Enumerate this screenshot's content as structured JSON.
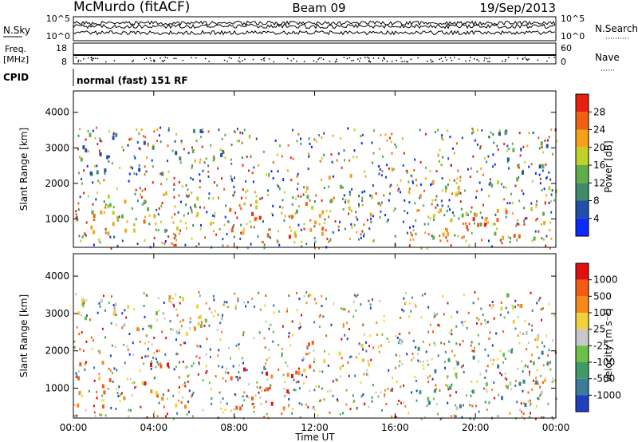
{
  "header": {
    "station": "McMurdo (fitACF)",
    "beam": "Beam 09",
    "date": "19/Sep/2013"
  },
  "noise_panel": {
    "left_label": "N.Sky",
    "right_label": "N.Search",
    "ticks_left": [
      "10^5",
      "10^0"
    ],
    "ticks_right": [
      "10^5",
      "10^0"
    ]
  },
  "freq_panel": {
    "left_label_1": "Freq.",
    "left_label_2": "[MHz]",
    "ticks_left": [
      "18",
      "8"
    ],
    "ticks_right": [
      "60",
      "0"
    ],
    "right_label": "Nave"
  },
  "cpid": {
    "label": "CPID",
    "value": "normal (fast) 151 RF"
  },
  "chart_data": [
    {
      "type": "heatmap",
      "title": "",
      "xlabel": "Time UT",
      "ylabel": "Slant Range [km]",
      "xlim": [
        0,
        24
      ],
      "ylim": [
        200,
        4600
      ],
      "yticks": [
        "1000",
        "2000",
        "3000",
        "4000"
      ],
      "colorbar_label": "Power [dB]",
      "colorbar_ticks": [
        "28",
        "24",
        "20",
        "16",
        "12",
        "8",
        "4"
      ],
      "colors": [
        "#0a2aff",
        "#1f4fa8",
        "#3f8a6a",
        "#5fae4a",
        "#bfd12a",
        "#f5a21a",
        "#f06012",
        "#e82010"
      ],
      "regions": [
        {
          "t0": 0.1,
          "t1": 6.8,
          "r0": 500,
          "r1": 1800,
          "level": 0.55
        },
        {
          "t0": 0.6,
          "t1": 3.5,
          "r0": 600,
          "r1": 1300,
          "level": 0.75
        },
        {
          "t0": 7.6,
          "t1": 13.8,
          "r0": 600,
          "r1": 1600,
          "level": 0.7
        },
        {
          "t0": 8.0,
          "t1": 11.2,
          "r0": 500,
          "r1": 1200,
          "level": 0.85
        },
        {
          "t0": 11.0,
          "t1": 14.8,
          "r0": 1100,
          "r1": 2300,
          "level": 0.5
        },
        {
          "t0": 17.0,
          "t1": 24.0,
          "r0": 500,
          "r1": 2200,
          "level": 0.6
        },
        {
          "t0": 17.5,
          "t1": 21.8,
          "r0": 600,
          "r1": 1300,
          "level": 0.8
        },
        {
          "t0": 0.0,
          "t1": 7.5,
          "r0": 2300,
          "r1": 3600,
          "level": 0.3
        },
        {
          "t0": 21.0,
          "t1": 24.0,
          "r0": 2300,
          "r1": 3600,
          "level": 0.3
        }
      ]
    },
    {
      "type": "heatmap",
      "title": "",
      "xlabel": "Time UT",
      "ylabel": "Slant Range [km]",
      "xlim": [
        0,
        24
      ],
      "ylim": [
        200,
        4600
      ],
      "xticks": [
        "00:00",
        "04:00",
        "08:00",
        "12:00",
        "16:00",
        "20:00",
        "00:00"
      ],
      "yticks": [
        "1000",
        "2000",
        "3000",
        "4000"
      ],
      "colorbar_label": "Velocity [m s⁻¹]",
      "colorbar_ticks": [
        "1000",
        "500",
        "100",
        "25",
        "-25",
        "-100",
        "-500",
        "-1000"
      ],
      "colors": [
        "#1f3fbf",
        "#3a7c9a",
        "#3f9a6a",
        "#6cc04a",
        "#c8c8c8",
        "#f2d23a",
        "#f58a1a",
        "#f55a14",
        "#e01010"
      ],
      "regions": [
        {
          "t0": 0.1,
          "t1": 6.8,
          "r0": 500,
          "r1": 1800,
          "level": 0.75
        },
        {
          "t0": 7.6,
          "t1": 11.8,
          "r0": 500,
          "r1": 1600,
          "level": 0.8
        },
        {
          "t0": 9.8,
          "t1": 10.9,
          "r0": 600,
          "r1": 1300,
          "level": 0.95
        },
        {
          "t0": 11.0,
          "t1": 14.8,
          "r0": 1100,
          "r1": 2300,
          "level": 0.7
        },
        {
          "t0": 17.0,
          "t1": 24.0,
          "r0": 500,
          "r1": 2200,
          "level": 0.3
        },
        {
          "t0": 0.0,
          "t1": 7.5,
          "r0": 2300,
          "r1": 3600,
          "level": 0.55
        },
        {
          "t0": 21.0,
          "t1": 24.0,
          "r0": 2300,
          "r1": 3600,
          "level": 0.55
        }
      ]
    }
  ]
}
